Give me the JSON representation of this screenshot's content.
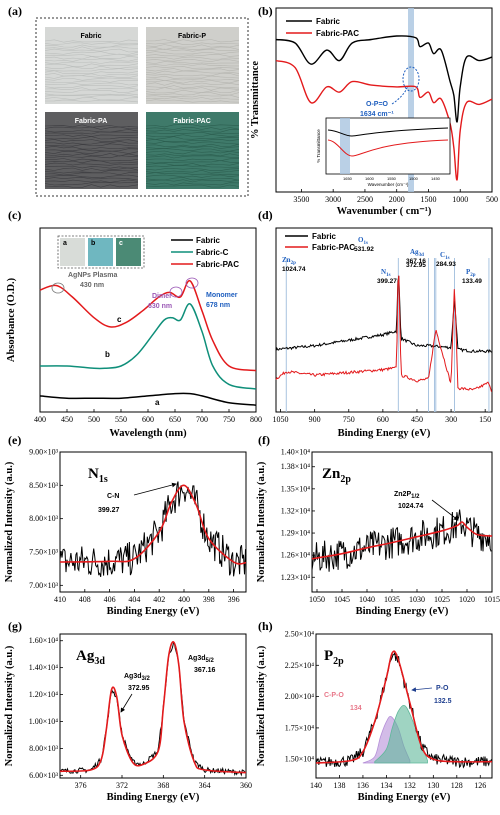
{
  "panels": {
    "a": {
      "label": "(a)",
      "tiles": [
        "Fabric",
        "Fabric-P",
        "Fabric-PA",
        "Fabric-PAC"
      ]
    },
    "b": {
      "label": "(b)",
      "legend": [
        "Fabric",
        "Fabric-PAC"
      ],
      "annotation": "O-P=O",
      "annotation_value": "1634 cm⁻¹",
      "inset_ylabel": "% Transmittance",
      "inset_xlabel": "Wavenumber (cm⁻¹)",
      "inset_ticks": [
        "1650",
        "1600",
        "1550",
        "1500",
        "1450"
      ]
    },
    "c": {
      "label": "(c)",
      "legend": [
        "Fabric",
        "Fabric-C",
        "Fabric-PAC"
      ],
      "inset_tiles": [
        "a",
        "b",
        "c"
      ],
      "ann_plasma": "AgNPs Plasma",
      "ann_plasma_nm": "430 nm",
      "ann_dimer": "Dimer",
      "ann_dimer_nm": "630 nm",
      "ann_monomer": "Monomer",
      "ann_monomer_nm": "678 nm",
      "curve_labels": [
        "a",
        "b",
        "c"
      ]
    },
    "d": {
      "label": "(d)",
      "legend": [
        "Fabric",
        "Fabric-PAC"
      ],
      "peaks": [
        {
          "name": "Zn2p",
          "value": "1024.74"
        },
        {
          "name": "O1s",
          "value": "531.92"
        },
        {
          "name": "N1s",
          "value": "399.27"
        },
        {
          "name": "Ag3d",
          "value": "367.16"
        },
        {
          "name": "",
          "value": "372.95"
        },
        {
          "name": "C1s",
          "value": "284.93"
        },
        {
          "name": "P2p",
          "value": "133.49"
        }
      ]
    },
    "e": {
      "label": "(e)",
      "title": "N",
      "title_sub": "1s",
      "ann": "C-N",
      "ann_value": "399.27"
    },
    "f": {
      "label": "(f)",
      "title": "Zn",
      "title_sub": "2p",
      "ann": "Zn2P",
      "ann_sub": "1/2",
      "ann_value": "1024.74"
    },
    "g": {
      "label": "(g)",
      "title": "Ag",
      "title_sub": "3d",
      "ann1": "Ag3d",
      "ann1_sub": "3/2",
      "ann1_value": "372.95",
      "ann2": "Ag3d",
      "ann2_sub": "5/2",
      "ann2_value": "367.16"
    },
    "h": {
      "label": "(h)",
      "title": "P",
      "title_sub": "2p",
      "ann1": "C-P-O",
      "ann1_value": "134",
      "ann2": "P-O",
      "ann2_value": "132.5"
    }
  },
  "colors": {
    "black": "#000000",
    "red": "#e31a1c",
    "teal": "#0f8f7a",
    "blue": "#1f5fbf",
    "purple": "#9b59b6",
    "band": "#a9c4e0"
  },
  "chart_data": [
    {
      "panel": "b",
      "type": "line",
      "xlabel": "Wavenumber ( cm⁻¹)",
      "ylabel": "% Transmittance",
      "xlim": [
        3900,
        500
      ],
      "x_ticks": [
        3500,
        3000,
        2500,
        2000,
        1500,
        1000,
        500
      ],
      "series": [
        {
          "name": "Fabric",
          "x": [
            3900,
            3600,
            3350,
            3100,
            2900,
            2700,
            2400,
            2000,
            1700,
            1634,
            1500,
            1420,
            1300,
            1160,
            1100,
            1050,
            1000,
            900,
            700,
            500
          ],
          "y": [
            0.82,
            0.8,
            0.68,
            0.76,
            0.7,
            0.8,
            0.82,
            0.84,
            0.83,
            0.78,
            0.8,
            0.74,
            0.76,
            0.58,
            0.5,
            0.35,
            0.55,
            0.72,
            0.7,
            0.72
          ]
        },
        {
          "name": "Fabric-PAC",
          "x": [
            3900,
            3600,
            3350,
            3100,
            2900,
            2700,
            2400,
            2000,
            1700,
            1634,
            1500,
            1420,
            1300,
            1160,
            1100,
            1050,
            1000,
            900,
            700,
            500
          ],
          "y": [
            0.7,
            0.66,
            0.46,
            0.55,
            0.52,
            0.58,
            0.56,
            0.55,
            0.55,
            0.49,
            0.52,
            0.46,
            0.48,
            0.34,
            0.2,
            0.02,
            0.3,
            0.46,
            0.45,
            0.48
          ]
        }
      ]
    },
    {
      "panel": "c",
      "type": "line",
      "xlabel": "Wavelength (nm)",
      "ylabel": "Absorbance (O.D.)",
      "xlim": [
        400,
        800
      ],
      "x_ticks": [
        400,
        450,
        500,
        550,
        600,
        650,
        700,
        750,
        800
      ],
      "series": [
        {
          "name": "Fabric",
          "x": [
            400,
            450,
            500,
            550,
            600,
            650,
            678,
            700,
            750,
            800
          ],
          "y": [
            0.07,
            0.06,
            0.06,
            0.06,
            0.07,
            0.08,
            0.08,
            0.07,
            0.04,
            0.03
          ]
        },
        {
          "name": "Fabric-C",
          "x": [
            400,
            450,
            500,
            520,
            550,
            580,
            610,
            630,
            645,
            660,
            678,
            700,
            720,
            750,
            800
          ],
          "y": [
            0.2,
            0.2,
            0.19,
            0.19,
            0.2,
            0.25,
            0.34,
            0.4,
            0.41,
            0.4,
            0.47,
            0.35,
            0.2,
            0.12,
            0.1
          ]
        },
        {
          "name": "Fabric-PAC",
          "x": [
            400,
            430,
            460,
            500,
            530,
            560,
            590,
            620,
            640,
            660,
            678,
            700,
            720,
            750,
            800
          ],
          "y": [
            0.53,
            0.55,
            0.5,
            0.41,
            0.37,
            0.39,
            0.44,
            0.5,
            0.52,
            0.5,
            0.57,
            0.44,
            0.31,
            0.2,
            0.18
          ]
        }
      ]
    },
    {
      "panel": "d",
      "type": "line",
      "xlabel": "Binding Energy (eV)",
      "ylabel": "",
      "xlim": [
        1070,
        120
      ],
      "x_ticks": [
        1050,
        900,
        750,
        600,
        450,
        300,
        150
      ],
      "series": [
        {
          "name": "Fabric",
          "x": [
            1070,
            900,
            700,
            600,
            540,
            531.9,
            520,
            450,
            400,
            300,
            285,
            270,
            200,
            120
          ],
          "y": [
            0.34,
            0.36,
            0.4,
            0.42,
            0.44,
            0.8,
            0.4,
            0.36,
            0.36,
            0.35,
            0.62,
            0.34,
            0.33,
            0.33
          ]
        },
        {
          "name": "Fabric-PAC",
          "x": [
            1070,
            1024.7,
            900,
            700,
            600,
            540,
            531.9,
            520,
            450,
            399,
            372.9,
            367.2,
            300,
            285,
            270,
            200,
            133.5,
            120
          ],
          "y": [
            0.18,
            0.22,
            0.2,
            0.22,
            0.23,
            0.24,
            0.85,
            0.2,
            0.17,
            0.18,
            0.4,
            0.45,
            0.15,
            0.7,
            0.13,
            0.12,
            0.16,
            0.11
          ]
        }
      ]
    },
    {
      "panel": "e",
      "type": "line",
      "xlabel": "Binding Energy (eV)",
      "ylabel": "Normalized Intensity (a.u.)",
      "xlim": [
        410,
        395
      ],
      "x_ticks": [
        410,
        408,
        406,
        404,
        402,
        400,
        398,
        396
      ],
      "ylim": [
        6900,
        9000
      ],
      "y_ticks": [
        7000,
        7500,
        8000,
        8500,
        9000
      ],
      "series": [
        {
          "name": "fit",
          "x": [
            410,
            406,
            404,
            402,
            401,
            400,
            399,
            398,
            396,
            395
          ],
          "y": [
            7350,
            7360,
            7400,
            7800,
            8250,
            8500,
            8200,
            7700,
            7350,
            7340
          ]
        }
      ]
    },
    {
      "panel": "f",
      "type": "line",
      "xlabel": "Binding Energy (eV)",
      "ylabel": "Normalized Intensity (a.u.)",
      "xlim": [
        1051,
        1015
      ],
      "x_ticks": [
        1050,
        1045,
        1040,
        1035,
        1030,
        1025,
        1020,
        1015
      ],
      "ylim": [
        12100,
        14000
      ],
      "y_ticks": [
        12300,
        12600,
        12900,
        13200,
        13500,
        13800,
        14000
      ],
      "series": [
        {
          "name": "fit",
          "x": [
            1051,
            1045,
            1040,
            1035,
            1030,
            1025,
            1022,
            1021,
            1020,
            1018,
            1015
          ],
          "y": [
            12550,
            12620,
            12700,
            12770,
            12850,
            12930,
            13000,
            13050,
            12980,
            12880,
            12860
          ]
        }
      ]
    },
    {
      "panel": "g",
      "type": "line",
      "xlabel": "Binding Energy (eV)",
      "ylabel": "Normalized Intensity (a.u.)",
      "xlim": [
        378,
        360
      ],
      "x_ticks": [
        376,
        372,
        368,
        364,
        360
      ],
      "ylim": [
        5800,
        16500
      ],
      "y_ticks": [
        6000,
        8000,
        10000,
        12000,
        14000,
        16000
      ],
      "series": [
        {
          "name": "fit",
          "x": [
            378,
            375,
            374,
            373.5,
            373,
            372.5,
            372,
            371,
            370,
            368.5,
            368,
            367.5,
            367,
            366.5,
            366,
            365,
            364,
            360
          ],
          "y": [
            6300,
            6400,
            7200,
            9500,
            12400,
            11800,
            9000,
            7000,
            6800,
            7800,
            11000,
            14800,
            15900,
            14200,
            10000,
            7000,
            6400,
            6200
          ]
        }
      ]
    },
    {
      "panel": "h",
      "type": "line",
      "xlabel": "Binding Energy (eV)",
      "ylabel": "Normalized Intensity (a.u.)",
      "xlim": [
        140,
        125
      ],
      "x_ticks": [
        140,
        138,
        136,
        134,
        132,
        130,
        128,
        126
      ],
      "ylim": [
        13500,
        25000
      ],
      "y_ticks": [
        15000,
        17500,
        20000,
        22500,
        25000
      ],
      "series": [
        {
          "name": "fit",
          "x": [
            140,
            137,
            136,
            135,
            134,
            133.5,
            133,
            132,
            131,
            130,
            128,
            125
          ],
          "y": [
            14700,
            14900,
            15600,
            18000,
            21500,
            23500,
            23000,
            19500,
            16000,
            15000,
            14800,
            14800
          ]
        },
        {
          "name": "C-P-O",
          "x": [
            136,
            135,
            134.5,
            134,
            133.6,
            133,
            132.5,
            132
          ],
          "y": [
            14700,
            15200,
            16800,
            18000,
            18400,
            17500,
            16000,
            14900
          ]
        },
        {
          "name": "P-O",
          "x": [
            135,
            134,
            133.5,
            133,
            132.5,
            132,
            131,
            130.5
          ],
          "y": [
            14800,
            15800,
            17500,
            18800,
            19300,
            18600,
            16200,
            14900
          ]
        }
      ]
    }
  ]
}
